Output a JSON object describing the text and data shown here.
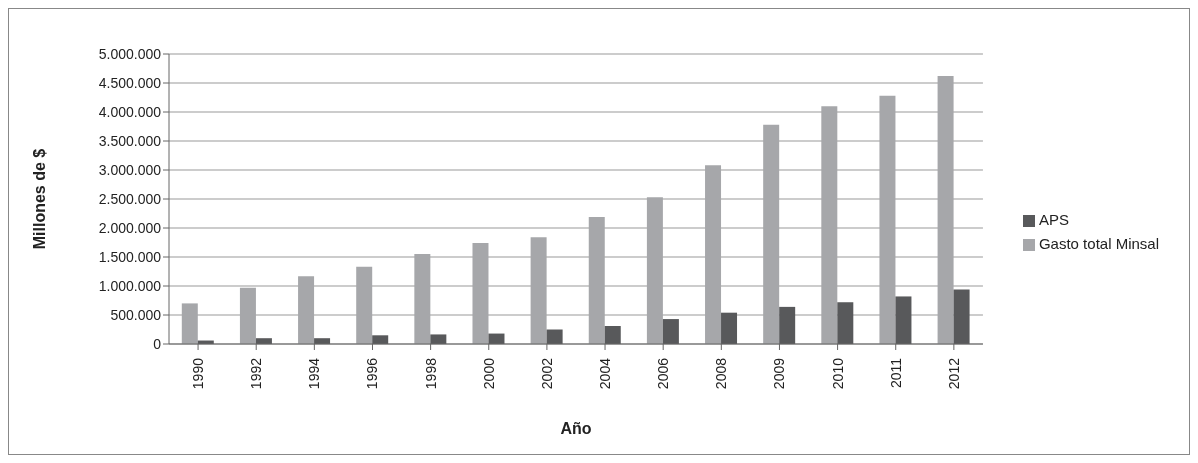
{
  "chart_data": {
    "type": "bar",
    "xlabel": "Año",
    "ylabel": "Millones de $",
    "categories": [
      "1990",
      "1992",
      "1994",
      "1996",
      "1998",
      "2000",
      "2002",
      "2004",
      "2006",
      "2008",
      "2009",
      "2010",
      "2011",
      "2012"
    ],
    "series": [
      {
        "name": "Gasto total Minsal",
        "color": "#a6a7aa",
        "values": [
          700000,
          970000,
          1170000,
          1330000,
          1550000,
          1740000,
          1840000,
          2190000,
          2530000,
          3080000,
          3780000,
          4100000,
          4280000,
          4620000
        ]
      },
      {
        "name": "APS",
        "color": "#58595b",
        "values": [
          60000,
          100000,
          100000,
          150000,
          165000,
          180000,
          250000,
          310000,
          430000,
          540000,
          640000,
          720000,
          820000,
          940000
        ]
      }
    ],
    "ylim": [
      0,
      5000000
    ],
    "yticks": [
      0,
      {
        "value": 500000,
        "label": "500.000"
      },
      {
        "value": 1000000,
        "label": "1.000.000"
      },
      {
        "value": 1500000,
        "label": "1.500.000"
      },
      {
        "value": 2000000,
        "label": "2.000.000"
      },
      {
        "value": 2500000,
        "label": "2.500.000"
      },
      {
        "value": 3000000,
        "label": "3.000.000"
      },
      {
        "value": 3500000,
        "label": "3.500.000"
      },
      {
        "value": 4000000,
        "label": "4.000.000"
      },
      {
        "value": 4500000,
        "label": "4.500.000"
      },
      {
        "value": 5000000,
        "label": "5.000.000"
      }
    ],
    "grid": "y",
    "legend": "right"
  }
}
